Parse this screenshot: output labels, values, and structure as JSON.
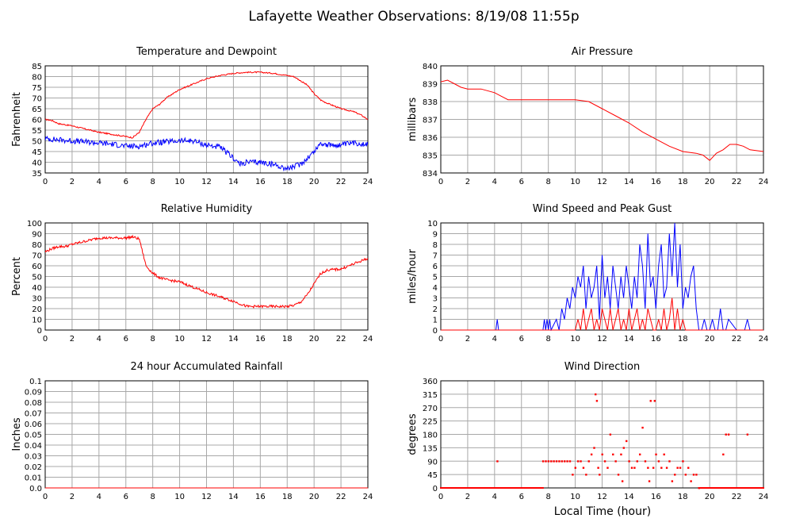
{
  "page": {
    "title": "Lafayette Weather Observations: 8/19/08 11:55p",
    "xlabel": "Local Time (hour)"
  },
  "chart_data": [
    {
      "id": "temp",
      "type": "line",
      "title": "Temperature and Dewpoint",
      "xlabel": "",
      "ylabel": "Fahrenheit",
      "xlim": [
        0,
        24
      ],
      "ylim": [
        35,
        85
      ],
      "xticks": [
        0,
        2,
        4,
        6,
        8,
        10,
        12,
        14,
        16,
        18,
        20,
        22,
        24
      ],
      "yticks": [
        35,
        40,
        45,
        50,
        55,
        60,
        65,
        70,
        75,
        80,
        85
      ],
      "grid": true,
      "series": [
        {
          "color": "#ff0000",
          "noise": 0.3,
          "x": [
            0,
            0.5,
            1,
            2,
            3,
            4,
            5,
            6,
            6.5,
            7,
            7.5,
            8,
            8.5,
            9,
            9.5,
            10,
            11,
            12,
            13,
            14,
            15,
            16,
            17,
            18,
            18.5,
            19,
            19.5,
            20,
            20.5,
            21,
            22,
            23,
            23.5,
            24
          ],
          "y": [
            60,
            59.5,
            58,
            57,
            55.5,
            54,
            53,
            52,
            51.5,
            54,
            60,
            65,
            67,
            70,
            72,
            74,
            76.5,
            79,
            80.5,
            81.5,
            82,
            82,
            81.5,
            80.5,
            80,
            78,
            76,
            72,
            69,
            67.5,
            65,
            63.5,
            62,
            60
          ]
        },
        {
          "color": "#0000ff",
          "noise": 1.3,
          "x": [
            0,
            1,
            2,
            3,
            4,
            5,
            6,
            7,
            8,
            9,
            10,
            11,
            12,
            13,
            14,
            14.5,
            15,
            16,
            17,
            18,
            18.5,
            19,
            19.5,
            20,
            20.5,
            21,
            22,
            23,
            24
          ],
          "y": [
            51,
            50.5,
            50,
            49.5,
            49,
            48.5,
            47.5,
            47.5,
            49,
            49.5,
            50,
            50,
            48,
            47,
            42,
            39,
            40,
            40,
            39,
            37,
            38,
            39,
            42,
            45,
            49,
            48,
            48,
            49,
            48.5
          ]
        }
      ]
    },
    {
      "id": "pressure",
      "type": "line",
      "title": "Air Pressure",
      "xlabel": "",
      "ylabel": "millibars",
      "xlim": [
        0,
        24
      ],
      "ylim": [
        834,
        840
      ],
      "xticks": [
        0,
        2,
        4,
        6,
        8,
        10,
        12,
        14,
        16,
        18,
        20,
        22,
        24
      ],
      "yticks": [
        834,
        835,
        836,
        837,
        838,
        839,
        840
      ],
      "grid": true,
      "series": [
        {
          "color": "#ff0000",
          "noise": 0,
          "x": [
            0,
            0.5,
            1,
            1.5,
            2,
            3,
            4,
            4.5,
            5,
            6,
            7,
            8,
            9,
            10,
            11,
            11.5,
            12,
            13,
            14,
            15,
            16,
            17,
            18,
            19,
            19.5,
            20,
            20.5,
            21,
            21.5,
            22,
            22.5,
            23,
            24
          ],
          "y": [
            839.1,
            839.2,
            839,
            838.8,
            838.7,
            838.7,
            838.5,
            838.3,
            838.1,
            838.1,
            838.1,
            838.1,
            838.1,
            838.1,
            838,
            837.8,
            837.6,
            837.2,
            836.8,
            836.3,
            835.9,
            835.5,
            835.2,
            835.1,
            835,
            834.7,
            835.1,
            835.3,
            835.6,
            835.6,
            835.5,
            835.3,
            835.2
          ]
        }
      ]
    },
    {
      "id": "humidity",
      "type": "line",
      "title": "Relative Humidity",
      "xlabel": "",
      "ylabel": "Percent",
      "xlim": [
        0,
        24
      ],
      "ylim": [
        0,
        100
      ],
      "xticks": [
        0,
        2,
        4,
        6,
        8,
        10,
        12,
        14,
        16,
        18,
        20,
        22,
        24
      ],
      "yticks": [
        0,
        10,
        20,
        30,
        40,
        50,
        60,
        70,
        80,
        90,
        100
      ],
      "grid": true,
      "series": [
        {
          "color": "#ff0000",
          "noise": 1.2,
          "x": [
            0,
            0.5,
            1,
            1.5,
            2,
            3,
            4,
            5,
            6,
            6.5,
            7,
            7.5,
            8,
            8.5,
            9,
            9.5,
            10,
            11,
            12,
            13,
            14,
            15,
            16,
            17,
            18,
            18.5,
            19,
            19.5,
            20,
            20.5,
            21,
            22,
            23,
            24
          ],
          "y": [
            73,
            76,
            78,
            78,
            80,
            83,
            86,
            86,
            86,
            87,
            85,
            60,
            53,
            49,
            47,
            46,
            45,
            40,
            35,
            31,
            27,
            22,
            22,
            22,
            22,
            23,
            26,
            33,
            43,
            53,
            56,
            57,
            62,
            67
          ]
        }
      ]
    },
    {
      "id": "wind",
      "type": "line",
      "title": "Wind Speed and Peak Gust",
      "xlabel": "",
      "ylabel": "miles/hour",
      "xlim": [
        0,
        24
      ],
      "ylim": [
        0,
        10
      ],
      "xticks": [
        0,
        2,
        4,
        6,
        8,
        10,
        12,
        14,
        16,
        18,
        20,
        22,
        24
      ],
      "yticks": [
        0,
        1,
        2,
        3,
        4,
        5,
        6,
        7,
        8,
        9,
        10
      ],
      "grid": true,
      "series": [
        {
          "color": "#0000ff",
          "noise": 0,
          "x": [
            0,
            4.1,
            4.2,
            4.3,
            7.6,
            7.7,
            7.8,
            7.9,
            8,
            8.1,
            8.2,
            8.6,
            8.8,
            9,
            9.2,
            9.4,
            9.6,
            9.8,
            10,
            10.2,
            10.4,
            10.6,
            10.8,
            11,
            11.2,
            11.4,
            11.6,
            11.8,
            12,
            12.2,
            12.4,
            12.6,
            12.8,
            13,
            13.2,
            13.4,
            13.6,
            13.8,
            14,
            14.2,
            14.4,
            14.6,
            14.8,
            15,
            15.2,
            15.4,
            15.6,
            15.8,
            16,
            16.2,
            16.4,
            16.6,
            16.8,
            17,
            17.2,
            17.4,
            17.6,
            17.8,
            18,
            18.2,
            18.4,
            18.6,
            18.8,
            19,
            19.2,
            19.4,
            19.6,
            19.8,
            20,
            20.2,
            20.4,
            20.6,
            20.8,
            21,
            21.2,
            21.4,
            22,
            22.6,
            22.8,
            23,
            24
          ],
          "y": [
            0,
            0,
            1,
            0,
            0,
            1,
            0,
            1,
            0,
            1,
            0,
            1,
            0,
            2,
            1,
            3,
            2,
            4,
            3,
            5,
            4,
            6,
            2,
            5,
            3,
            4,
            6,
            1,
            7,
            3,
            5,
            2,
            6,
            4,
            2,
            5,
            3,
            6,
            4,
            2,
            5,
            3,
            8,
            6,
            2,
            9,
            4,
            5,
            2,
            6,
            8,
            3,
            4,
            9,
            5,
            10,
            4,
            8,
            2,
            4,
            3,
            5,
            6,
            2,
            0,
            0,
            1,
            0,
            0,
            1,
            0,
            0,
            2,
            0,
            0,
            1,
            0,
            0,
            1,
            0,
            0
          ]
        },
        {
          "color": "#ff0000",
          "noise": 0,
          "x": [
            0,
            10,
            10.2,
            10.4,
            10.6,
            10.8,
            11,
            11.2,
            11.4,
            11.6,
            11.8,
            12,
            12.2,
            12.4,
            12.6,
            12.8,
            13,
            13.2,
            13.4,
            13.6,
            13.8,
            14,
            14.2,
            14.4,
            14.6,
            14.8,
            15,
            15.2,
            15.4,
            15.6,
            15.8,
            16,
            16.2,
            16.4,
            16.6,
            16.8,
            17,
            17.2,
            17.4,
            17.6,
            17.8,
            18,
            18.2,
            18.4,
            24
          ],
          "y": [
            0,
            0,
            1,
            0,
            2,
            0,
            1,
            2,
            0,
            1,
            0,
            2,
            1,
            0,
            2,
            0,
            1,
            2,
            0,
            1,
            0,
            2,
            0,
            1,
            2,
            0,
            1,
            0,
            2,
            1,
            0,
            0,
            1,
            0,
            2,
            0,
            1,
            3,
            0,
            2,
            0,
            1,
            0,
            0,
            0
          ]
        }
      ]
    },
    {
      "id": "rain",
      "type": "line",
      "title": "24 hour Accumulated Rainfall",
      "xlabel": "",
      "ylabel": "Inches",
      "xlim": [
        0,
        24
      ],
      "ylim": [
        0,
        0.1
      ],
      "xticks": [
        0,
        2,
        4,
        6,
        8,
        10,
        12,
        14,
        16,
        18,
        20,
        22,
        24
      ],
      "yticks": [
        0.0,
        0.01,
        0.02,
        0.03,
        0.04,
        0.05,
        0.06,
        0.07,
        0.08,
        0.09,
        0.1
      ],
      "ytick_labels": [
        "0.0",
        "0.01",
        "0.02",
        "0.03",
        "0.04",
        "0.05",
        "0.06",
        "0.07",
        "0.08",
        "0.09",
        "0.1"
      ],
      "grid": true,
      "series": [
        {
          "color": "#ff0000",
          "noise": 0,
          "x": [
            0,
            24
          ],
          "y": [
            0,
            0
          ]
        }
      ]
    },
    {
      "id": "winddir",
      "type": "scatter",
      "title": "Wind Direction",
      "xlabel": "Local Time (hour)",
      "ylabel": "degrees",
      "xlim": [
        0,
        24
      ],
      "ylim": [
        0,
        360
      ],
      "xticks": [
        0,
        2,
        4,
        6,
        8,
        10,
        12,
        14,
        16,
        18,
        20,
        22,
        24
      ],
      "yticks": [
        0,
        45,
        90,
        135,
        180,
        225,
        270,
        315,
        360
      ],
      "grid": true,
      "baseline": [
        {
          "from": 0,
          "to": 7.6,
          "y": 0
        },
        {
          "from": 19.2,
          "to": 24,
          "y": 0
        }
      ],
      "series": [
        {
          "color": "#ff0000",
          "x": [
            4.2,
            7.6,
            7.8,
            8,
            8.2,
            8.4,
            8.6,
            8.8,
            9,
            9.2,
            9.4,
            9.6,
            9.8,
            10,
            10.2,
            10.4,
            10.6,
            10.8,
            11,
            11.2,
            11.4,
            11.5,
            11.6,
            11.7,
            11.8,
            12,
            12.2,
            12.4,
            12.6,
            12.8,
            13,
            13.2,
            13.4,
            13.5,
            13.6,
            13.8,
            14,
            14.2,
            14.4,
            14.6,
            14.8,
            15,
            15.2,
            15.4,
            15.5,
            15.6,
            15.8,
            15.9,
            16,
            16.2,
            16.4,
            16.6,
            16.8,
            17,
            17.2,
            17.4,
            17.6,
            17.8,
            18,
            18.2,
            18.4,
            18.6,
            18.8,
            19,
            19.2,
            21,
            21.2,
            21.4,
            22.8
          ],
          "y": [
            90,
            90,
            90,
            90,
            90,
            90,
            90,
            90,
            90,
            90,
            90,
            90,
            45,
            68,
            90,
            90,
            68,
            45,
            90,
            113,
            135,
            315,
            293,
            68,
            45,
            113,
            90,
            68,
            180,
            113,
            90,
            45,
            113,
            23,
            135,
            158,
            90,
            68,
            68,
            90,
            113,
            203,
            90,
            68,
            23,
            293,
            68,
            293,
            113,
            90,
            68,
            113,
            68,
            90,
            23,
            45,
            68,
            68,
            90,
            45,
            68,
            23,
            45,
            45,
            0,
            113,
            180,
            180,
            180
          ]
        }
      ]
    }
  ]
}
